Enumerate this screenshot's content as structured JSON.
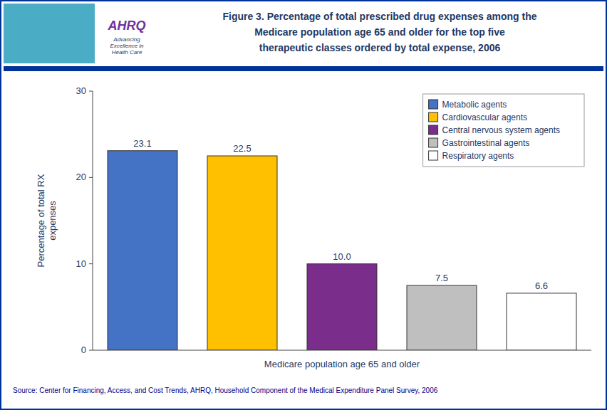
{
  "chart_data": {
    "type": "bar",
    "title": "Figure 3. Percentage of total prescribed drug expenses among the\nMedicare population age 65 and older for the top five\ntherapeutic classes ordered by total expense, 2006",
    "xlabel": "Medicare population age 65 and older",
    "ylabel": "Percentage of total RX\nexpenses",
    "categories": [
      "Metabolic agents",
      "Cardiovascular agents",
      "Central nervous system agents",
      "Gastrointestinal agents",
      "Respiratory agents"
    ],
    "values": [
      23.1,
      22.5,
      10.0,
      7.5,
      6.6
    ],
    "value_labels": [
      "23.1",
      "22.5",
      "10.0",
      "7.5",
      "6.6"
    ],
    "colors": [
      "#4472C4",
      "#FFC000",
      "#7B2D8B",
      "#BFBFBF",
      "#FFFFFF"
    ],
    "ylim": [
      0,
      30
    ],
    "yticks": [
      0,
      10,
      20,
      30
    ],
    "data_labels": true,
    "legend": "upper right",
    "grid": false,
    "tick_labels": "y",
    "annotations": [
      "AHRQ",
      "Advancing\nExcellence in\nHealth Care",
      "Source: Center for Financing, Access, and Cost Trends, AHRQ, Household Component of the Medical Expenditure Panel Survey, 2006"
    ]
  }
}
